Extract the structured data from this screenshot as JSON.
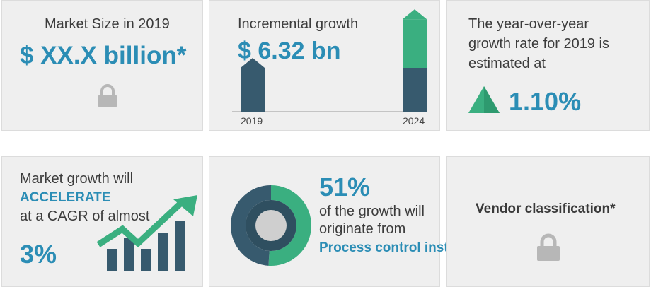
{
  "market_size": {
    "label": "Market Size in 2019",
    "value": "$ XX.X billion*",
    "icon": "lock-icon"
  },
  "incremental": {
    "label": "Incremental growth",
    "value": "$ 6.32 bn",
    "bars": [
      {
        "year": "2019",
        "base": 1.0,
        "growth": 0.0
      },
      {
        "year": "2024",
        "base": 1.0,
        "growth": 1.11
      }
    ],
    "colors": {
      "base": "#375a6e",
      "growth": "#3aaf80"
    }
  },
  "yoy": {
    "line1": "The year-over-year",
    "line2": "growth rate for 2019 is",
    "line3": "estimated at",
    "value": "1.10%",
    "icon": "triangle-up-icon"
  },
  "cagr": {
    "line1": "Market growth will",
    "line2": "ACCELERATE",
    "line3": "at a CAGR of almost",
    "value": "3%",
    "icon": "growth-arrow-icon"
  },
  "segment": {
    "value": "51%",
    "line1": "of the growth will",
    "line2": "originate from",
    "segment": "Process control instruments",
    "share": 0.51,
    "colors": {
      "highlight": "#3aaf80",
      "rest": "#375a6e",
      "inner": "#cfcfcf"
    }
  },
  "vendor": {
    "label": "Vendor classification*",
    "icon": "lock-icon"
  }
}
